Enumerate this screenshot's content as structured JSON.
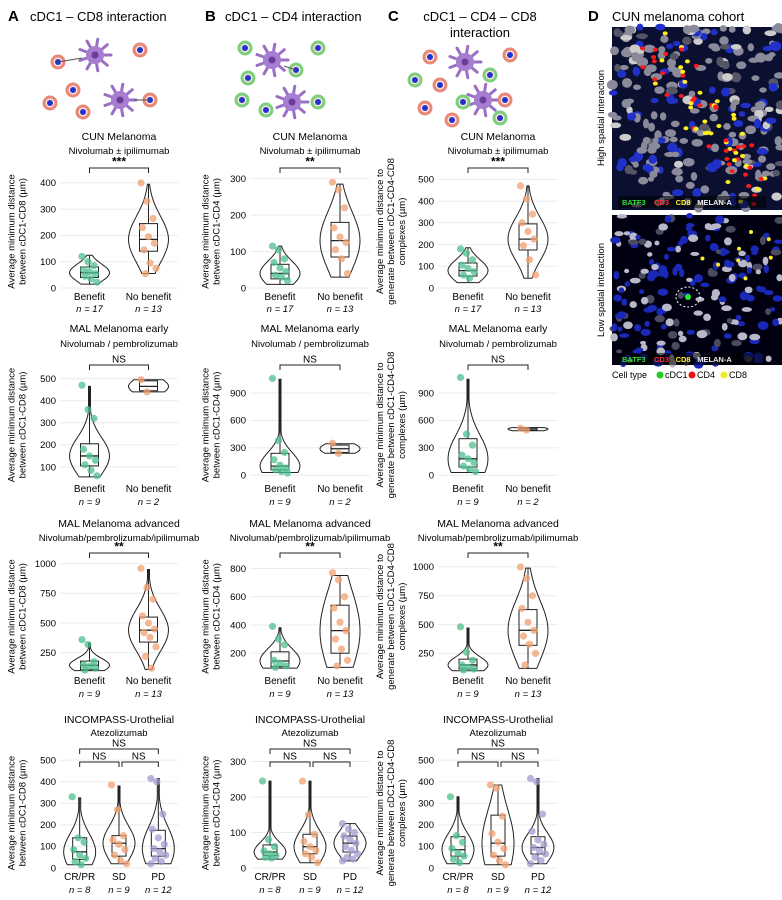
{
  "panels": [
    {
      "letter": "A",
      "title": "cDC1 – CD8 interaction"
    },
    {
      "letter": "B",
      "title": "cDC1 – CD4 interaction"
    },
    {
      "letter": "C",
      "title_lines": [
        "cDC1 – CD4 – CD8",
        "interaction"
      ]
    },
    {
      "letter": "D",
      "title": "CUN melanoma cohort"
    }
  ],
  "images": {
    "high_label": "High spatial interaction",
    "low_label": "Low spatial interaction",
    "markers": [
      {
        "text": "BATF3",
        "color": "#33dd33"
      },
      {
        "text": "CD3",
        "color": "#ff3333"
      },
      {
        "text": "CD8",
        "color": "#ffee33"
      },
      {
        "text": "MELAN-A",
        "color": "#eeeeee"
      }
    ],
    "legend": {
      "title": "Cell type",
      "items": [
        {
          "text": "cDC1",
          "color": "#22cc22"
        },
        {
          "text": "CD4",
          "color": "#ee1111"
        },
        {
          "text": "CD8",
          "color": "#eeee22"
        }
      ]
    }
  },
  "colors": {
    "group1": "#4dbf8f",
    "group2": "#f0a070",
    "group3": "#a69ad0"
  },
  "ylabels": {
    "A": [
      "Average minimum distance",
      "between cDC1-CD8 (µm)"
    ],
    "B": [
      "Average minimum distance",
      "between cDC1-CD4 (µm)"
    ],
    "C": [
      "Average minimum distance to",
      "generate between cDC1-CD4-CD8",
      "complexes (µm)"
    ]
  },
  "chart_data": [
    {
      "type": "violin-box",
      "panel": "A",
      "cohort": "CUN Melanoma",
      "treatment": "Nivolumab ± ipilimumab",
      "ylim": [
        0,
        430
      ],
      "yticks": [
        0,
        100,
        200,
        300,
        400
      ],
      "groups": [
        {
          "name": "Benefit",
          "n": "n = 17",
          "median": 58,
          "q1": 40,
          "q3": 80,
          "whisker": [
            15,
            125
          ],
          "points": [
            120,
            100,
            85,
            70,
            62,
            55,
            45,
            35,
            22
          ]
        },
        {
          "name": "No benefit",
          "n": "n = 13",
          "median": 185,
          "q1": 140,
          "q3": 245,
          "whisker": [
            55,
            395
          ],
          "points": [
            400,
            330,
            265,
            230,
            195,
            170,
            145,
            95,
            75,
            55
          ]
        }
      ],
      "significance": [
        {
          "from": 0,
          "to": 1,
          "label": "***"
        }
      ]
    },
    {
      "type": "violin-box",
      "panel": "B",
      "cohort": "CUN Melanoma",
      "treatment": "Nivolumab ± ipilimumab",
      "ylim": [
        0,
        310
      ],
      "yticks": [
        0,
        100,
        200,
        300
      ],
      "groups": [
        {
          "name": "Benefit",
          "n": "n = 17",
          "median": 40,
          "q1": 25,
          "q3": 65,
          "whisker": [
            10,
            115
          ],
          "points": [
            115,
            105,
            80,
            70,
            55,
            45,
            35,
            30,
            20
          ]
        },
        {
          "name": "No benefit",
          "n": "n = 13",
          "median": 130,
          "q1": 85,
          "q3": 180,
          "whisker": [
            30,
            285
          ],
          "points": [
            290,
            270,
            220,
            165,
            140,
            125,
            105,
            80,
            40
          ]
        }
      ],
      "significance": [
        {
          "from": 0,
          "to": 1,
          "label": "**"
        }
      ]
    },
    {
      "type": "violin-box",
      "panel": "C",
      "cohort": "CUN Melanoma",
      "treatment": "Nivolumab ± ipilimumab",
      "ylim": [
        0,
        520
      ],
      "yticks": [
        0,
        100,
        200,
        300,
        400,
        500
      ],
      "groups": [
        {
          "name": "Benefit",
          "n": "n = 17",
          "median": 80,
          "q1": 55,
          "q3": 115,
          "whisker": [
            25,
            185
          ],
          "points": [
            180,
            160,
            130,
            105,
            90,
            75,
            60,
            45
          ]
        },
        {
          "name": "No benefit",
          "n": "n = 13",
          "median": 225,
          "q1": 175,
          "q3": 295,
          "whisker": [
            45,
            470
          ],
          "points": [
            470,
            410,
            340,
            300,
            260,
            225,
            195,
            130,
            60
          ]
        }
      ],
      "significance": [
        {
          "from": 0,
          "to": 1,
          "label": "***"
        }
      ]
    },
    {
      "type": "violin-box",
      "panel": "A",
      "cohort": "MAL Melanoma early",
      "treatment": "Nivolumab / pembrolizumab",
      "ylim": [
        50,
        530
      ],
      "yticks": [
        100,
        200,
        300,
        400,
        500
      ],
      "groups": [
        {
          "name": "Benefit",
          "n": "n = 9",
          "median": 150,
          "q1": 105,
          "q3": 205,
          "whisker": [
            55,
            465
          ],
          "points": [
            470,
            360,
            320,
            180,
            150,
            130,
            110,
            85,
            60
          ]
        },
        {
          "name": "No benefit",
          "n": "n = 2",
          "median": 465,
          "q1": 445,
          "q3": 490,
          "whisker": [
            440,
            495
          ],
          "points": [
            495,
            440
          ]
        }
      ],
      "significance": [
        {
          "from": 0,
          "to": 1,
          "label": "NS"
        }
      ]
    },
    {
      "type": "violin-box",
      "panel": "B",
      "cohort": "MAL Melanoma early",
      "treatment": "Nivolumab / pembrolizumab",
      "ylim": [
        -30,
        1130
      ],
      "yticks": [
        0,
        300,
        600,
        900
      ],
      "groups": [
        {
          "name": "Benefit",
          "n": "n = 9",
          "median": 100,
          "q1": 60,
          "q3": 240,
          "whisker": [
            30,
            1050
          ],
          "points": [
            1060,
            380,
            250,
            170,
            110,
            80,
            60,
            40,
            25
          ]
        },
        {
          "name": "No benefit",
          "n": "n = 2",
          "median": 290,
          "q1": 250,
          "q3": 330,
          "whisker": [
            240,
            345
          ],
          "points": [
            350,
            240
          ]
        }
      ],
      "significance": [
        {
          "from": 0,
          "to": 1,
          "label": "NS"
        }
      ]
    },
    {
      "type": "violin-box",
      "panel": "C",
      "cohort": "MAL Melanoma early",
      "treatment": "Nivolumab / pembrolizumab",
      "ylim": [
        -30,
        1130
      ],
      "yticks": [
        0,
        300,
        600,
        900
      ],
      "groups": [
        {
          "name": "Benefit",
          "n": "n = 9",
          "median": 180,
          "q1": 90,
          "q3": 400,
          "whisker": [
            30,
            1050
          ],
          "points": [
            1070,
            450,
            330,
            220,
            180,
            140,
            100,
            70,
            40
          ]
        },
        {
          "name": "No benefit",
          "n": "n = 2",
          "median": 505,
          "q1": 490,
          "q3": 520,
          "whisker": [
            488,
            522
          ],
          "points": [
            515,
            495
          ]
        }
      ],
      "significance": [
        {
          "from": 0,
          "to": 1,
          "label": "NS"
        }
      ]
    },
    {
      "type": "violin-box",
      "panel": "A",
      "cohort": "MAL Melanoma advanced",
      "treatment": "Nivolumab/pembrolizumab/ipilimumab",
      "ylim": [
        80,
        1030
      ],
      "yticks": [
        250,
        500,
        750,
        1000
      ],
      "groups": [
        {
          "name": "Benefit",
          "n": "n = 9",
          "median": 145,
          "q1": 110,
          "q3": 180,
          "whisker": [
            100,
            330
          ],
          "points": [
            360,
            320,
            175,
            150,
            135,
            120,
            105
          ]
        },
        {
          "name": "No benefit",
          "n": "n = 13",
          "median": 440,
          "q1": 340,
          "q3": 550,
          "whisker": [
            110,
            950
          ],
          "points": [
            960,
            800,
            700,
            560,
            500,
            450,
            420,
            380,
            300,
            220,
            120
          ]
        }
      ],
      "significance": [
        {
          "from": 0,
          "to": 1,
          "label": "**"
        }
      ]
    },
    {
      "type": "violin-box",
      "panel": "B",
      "cohort": "MAL Melanoma advanced",
      "treatment": "Nivolumab/pembrolizumab/ipilimumab",
      "ylim": [
        60,
        860
      ],
      "yticks": [
        200,
        400,
        600,
        800
      ],
      "groups": [
        {
          "name": "Benefit",
          "n": "n = 9",
          "median": 145,
          "q1": 105,
          "q3": 210,
          "whisker": [
            95,
            380
          ],
          "points": [
            390,
            300,
            260,
            150,
            130,
            110,
            100
          ]
        },
        {
          "name": "No benefit",
          "n": "n = 13",
          "median": 360,
          "q1": 200,
          "q3": 540,
          "whisker": [
            100,
            750
          ],
          "points": [
            770,
            720,
            600,
            520,
            420,
            360,
            300,
            230,
            150,
            110
          ]
        }
      ],
      "significance": [
        {
          "from": 0,
          "to": 1,
          "label": "**"
        }
      ]
    },
    {
      "type": "violin-box",
      "panel": "C",
      "cohort": "MAL Melanoma advanced",
      "treatment": "Nivolumab/pembrolizumab/ipilimumab",
      "ylim": [
        80,
        1060
      ],
      "yticks": [
        250,
        500,
        750,
        1000
      ],
      "groups": [
        {
          "name": "Benefit",
          "n": "n = 9",
          "median": 150,
          "q1": 115,
          "q3": 200,
          "whisker": [
            100,
            470
          ],
          "points": [
            480,
            260,
            190,
            150,
            130,
            115,
            105
          ]
        },
        {
          "name": "No benefit",
          "n": "n = 13",
          "median": 450,
          "q1": 320,
          "q3": 630,
          "whisker": [
            120,
            990
          ],
          "points": [
            1000,
            900,
            750,
            640,
            520,
            450,
            400,
            330,
            250,
            150
          ]
        }
      ],
      "significance": [
        {
          "from": 0,
          "to": 1,
          "label": "**"
        }
      ]
    },
    {
      "type": "violin-box",
      "panel": "A",
      "cohort": "INCOMPASS-Urothelial",
      "treatment": "Atezolizumab",
      "ylim": [
        0,
        510
      ],
      "yticks": [
        0,
        100,
        200,
        300,
        400,
        500
      ],
      "groups": [
        {
          "name": "CR/PR",
          "n": "n = 8",
          "median": 75,
          "q1": 40,
          "q3": 140,
          "whisker": [
            15,
            325
          ],
          "points": [
            330,
            140,
            120,
            85,
            60,
            45,
            30,
            15
          ]
        },
        {
          "name": "SD",
          "n": "n = 9",
          "median": 115,
          "q1": 55,
          "q3": 150,
          "whisker": [
            20,
            380
          ],
          "points": [
            385,
            270,
            150,
            130,
            110,
            85,
            60,
            35,
            20
          ]
        },
        {
          "name": "PD",
          "n": "n = 12",
          "median": 90,
          "q1": 55,
          "q3": 175,
          "whisker": [
            20,
            415
          ],
          "points": [
            415,
            400,
            250,
            180,
            140,
            110,
            90,
            75,
            60,
            45,
            30,
            20
          ]
        }
      ],
      "significance": [
        {
          "from": 0,
          "to": 1,
          "label": "NS"
        },
        {
          "from": 1,
          "to": 2,
          "label": "NS"
        },
        {
          "from": 0,
          "to": 2,
          "label": "NS"
        }
      ]
    },
    {
      "type": "violin-box",
      "panel": "B",
      "cohort": "INCOMPASS-Urothelial",
      "treatment": "Atezolizumab",
      "ylim": [
        0,
        310
      ],
      "yticks": [
        0,
        100,
        200,
        300
      ],
      "groups": [
        {
          "name": "CR/PR",
          "n": "n = 8",
          "median": 45,
          "q1": 35,
          "q3": 65,
          "whisker": [
            25,
            245
          ],
          "points": [
            245,
            80,
            60,
            48,
            40,
            35,
            30,
            28
          ]
        },
        {
          "name": "SD",
          "n": "n = 9",
          "median": 60,
          "q1": 40,
          "q3": 95,
          "whisker": [
            15,
            245
          ],
          "points": [
            245,
            150,
            95,
            75,
            60,
            50,
            40,
            30,
            15
          ]
        },
        {
          "name": "PD",
          "n": "n = 12",
          "median": 70,
          "q1": 45,
          "q3": 90,
          "whisker": [
            20,
            125
          ],
          "points": [
            125,
            110,
            100,
            90,
            80,
            70,
            60,
            50,
            40,
            30,
            25,
            20
          ]
        }
      ],
      "significance": [
        {
          "from": 0,
          "to": 1,
          "label": "NS"
        },
        {
          "from": 1,
          "to": 2,
          "label": "NS"
        },
        {
          "from": 0,
          "to": 2,
          "label": "NS"
        }
      ]
    },
    {
      "type": "violin-box",
      "panel": "C",
      "cohort": "INCOMPASS-Urothelial",
      "treatment": "Atezolizumab",
      "ylim": [
        0,
        510
      ],
      "yticks": [
        0,
        100,
        200,
        300,
        400,
        500
      ],
      "groups": [
        {
          "name": "CR/PR",
          "n": "n = 8",
          "median": 85,
          "q1": 55,
          "q3": 145,
          "whisker": [
            20,
            330
          ],
          "points": [
            330,
            150,
            120,
            90,
            70,
            55,
            40,
            25
          ]
        },
        {
          "name": "SD",
          "n": "n = 9",
          "median": 115,
          "q1": 55,
          "q3": 245,
          "whisker": [
            15,
            385
          ],
          "points": [
            385,
            370,
            240,
            160,
            120,
            90,
            60,
            35,
            15
          ]
        },
        {
          "name": "PD",
          "n": "n = 12",
          "median": 95,
          "q1": 65,
          "q3": 145,
          "whisker": [
            20,
            415
          ],
          "points": [
            415,
            400,
            250,
            170,
            130,
            110,
            95,
            80,
            65,
            50,
            35,
            20
          ]
        }
      ],
      "significance": [
        {
          "from": 0,
          "to": 1,
          "label": "NS"
        },
        {
          "from": 1,
          "to": 2,
          "label": "NS"
        },
        {
          "from": 0,
          "to": 2,
          "label": "NS"
        }
      ]
    }
  ]
}
